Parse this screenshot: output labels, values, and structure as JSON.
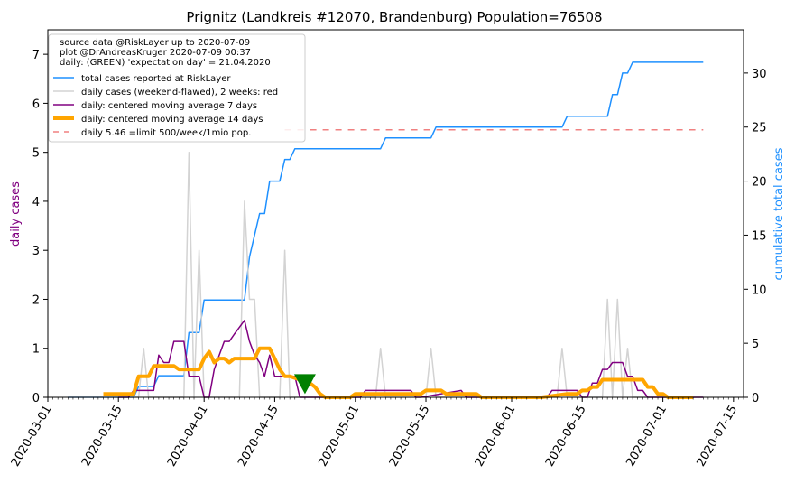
{
  "chart_data": {
    "type": "line",
    "title": "Prignitz (Landkreis #12070, Brandenburg) Population=76508",
    "ylabel_left": "daily cases",
    "ylabel_right": "cumulative total cases",
    "left_color": "#800080",
    "right_color": "#1e90ff",
    "x_start": "2020-03-01",
    "x_end": "2020-07-17",
    "x_ticks": [
      "2020-03-01",
      "2020-03-15",
      "2020-04-01",
      "2020-04-15",
      "2020-05-01",
      "2020-05-15",
      "2020-06-01",
      "2020-06-15",
      "2020-07-01",
      "2020-07-15"
    ],
    "ylim_left": [
      0,
      7.5
    ],
    "ylim_right": [
      0,
      34
    ],
    "yticks_left": [
      "0",
      "1",
      "2",
      "3",
      "4",
      "5",
      "6",
      "7"
    ],
    "yticks_right": [
      "0",
      "5",
      "10",
      "15",
      "20",
      "25",
      "30"
    ],
    "legend": {
      "placement": "upper-left",
      "info_lines": [
        "source data @RiskLayer up to 2020-07-09",
        "plot @DrAndreasKruger 2020-07-09 00:37",
        "daily: (GREEN) 'expectation day' = 21.04.2020"
      ],
      "entries": [
        {
          "label": "total cases reported at RiskLayer",
          "color": "#1e90ff",
          "width": 1.5,
          "dash": ""
        },
        {
          "label": "daily cases (weekend-flawed), 2 weeks: red",
          "color": "#d3d3d3",
          "width": 1.5,
          "dash": ""
        },
        {
          "label": "daily: centered moving average 7 days",
          "color": "#800080",
          "width": 1.5,
          "dash": ""
        },
        {
          "label": "daily: centered moving average 14 days",
          "color": "#ffa500",
          "width": 4,
          "dash": ""
        },
        {
          "label": "daily 5.46 =limit 500/week/1mio pop.",
          "color": "#f08080",
          "width": 1.5,
          "dash": "6,6"
        }
      ]
    },
    "limit_line": {
      "value": 5.46,
      "x_from": "2020-04-17",
      "x_to": "2020-07-09",
      "color": "#f08080"
    },
    "expectation_marker": {
      "date": "2020-04-21",
      "value": 0.25,
      "color": "#008000"
    },
    "series": [
      {
        "name": "total cases reported at RiskLayer",
        "axis": "right",
        "color": "#1e90ff",
        "width": 1.5,
        "x": [
          "2020-03-05",
          "2020-03-18",
          "2020-03-19",
          "2020-03-22",
          "2020-03-23",
          "2020-03-28",
          "2020-03-29",
          "2020-03-31",
          "2020-04-01",
          "2020-04-09",
          "2020-04-10",
          "2020-04-11",
          "2020-04-12",
          "2020-04-13",
          "2020-04-14",
          "2020-04-16",
          "2020-04-17",
          "2020-04-18",
          "2020-04-19",
          "2020-05-06",
          "2020-05-07",
          "2020-05-16",
          "2020-05-17",
          "2020-06-11",
          "2020-06-12",
          "2020-06-20",
          "2020-06-21",
          "2020-06-22",
          "2020-06-23",
          "2020-06-24",
          "2020-06-25",
          "2020-07-09"
        ],
        "values": [
          0,
          0,
          1,
          1,
          2,
          2,
          6,
          6,
          9,
          9,
          13,
          15,
          17,
          17,
          20,
          20,
          22,
          22,
          23,
          23,
          24,
          24,
          25,
          25,
          26,
          26,
          28,
          28,
          30,
          30,
          31,
          31
        ]
      },
      {
        "name": "daily cases (weekend-flawed), 2 weeks: red",
        "axis": "left",
        "color": "#d3d3d3",
        "width": 1.5,
        "x": [
          "2020-03-05",
          "2020-03-19",
          "2020-03-20",
          "2020-03-21",
          "2020-03-28",
          "2020-03-29",
          "2020-03-30",
          "2020-03-31",
          "2020-04-01",
          "2020-04-08",
          "2020-04-09",
          "2020-04-10",
          "2020-04-11",
          "2020-04-12",
          "2020-04-13",
          "2020-04-16",
          "2020-04-17",
          "2020-04-18",
          "2020-05-05",
          "2020-05-06",
          "2020-05-07",
          "2020-05-15",
          "2020-05-16",
          "2020-05-17",
          "2020-06-10",
          "2020-06-11",
          "2020-06-12",
          "2020-06-19",
          "2020-06-20",
          "2020-06-21",
          "2020-06-22",
          "2020-06-23",
          "2020-06-24",
          "2020-06-25",
          "2020-07-09"
        ],
        "values": [
          0,
          0,
          1,
          0,
          0,
          5,
          0,
          3,
          0,
          0,
          4,
          2,
          2,
          0,
          0,
          0,
          3,
          0,
          0,
          1,
          0,
          0,
          1,
          0,
          0,
          1,
          0,
          0,
          2,
          0,
          2,
          0,
          1,
          0,
          0
        ]
      },
      {
        "name": "daily: centered moving average 7 days",
        "axis": "left",
        "color": "#800080",
        "width": 1.5,
        "x": [
          "2020-03-15",
          "2020-03-17",
          "2020-03-18",
          "2020-03-22",
          "2020-03-23",
          "2020-03-24",
          "2020-03-25",
          "2020-03-26",
          "2020-03-27",
          "2020-03-28",
          "2020-03-29",
          "2020-03-30",
          "2020-03-31",
          "2020-04-01",
          "2020-04-02",
          "2020-04-03",
          "2020-04-04",
          "2020-04-05",
          "2020-04-06",
          "2020-04-07",
          "2020-04-08",
          "2020-04-09",
          "2020-04-10",
          "2020-04-11",
          "2020-04-12",
          "2020-04-13",
          "2020-04-14",
          "2020-04-15",
          "2020-04-16",
          "2020-04-17",
          "2020-04-18",
          "2020-04-19",
          "2020-04-20",
          "2020-04-21",
          "2020-04-22",
          "2020-04-23",
          "2020-04-24",
          "2020-04-25",
          "2020-04-30",
          "2020-05-02",
          "2020-05-03",
          "2020-05-12",
          "2020-05-13",
          "2020-05-14",
          "2020-05-22",
          "2020-05-23",
          "2020-05-24",
          "2020-06-08",
          "2020-06-09",
          "2020-06-10",
          "2020-06-14",
          "2020-06-15",
          "2020-06-16",
          "2020-06-17",
          "2020-06-18",
          "2020-06-19",
          "2020-06-20",
          "2020-06-21",
          "2020-06-22",
          "2020-06-23",
          "2020-06-24",
          "2020-06-25",
          "2020-06-26",
          "2020-06-27",
          "2020-06-28",
          "2020-06-29",
          "2020-06-30",
          "2020-07-09"
        ],
        "values": [
          0,
          0,
          0.14,
          0.14,
          0.86,
          0.71,
          0.71,
          1.14,
          1.14,
          1.14,
          0.43,
          0.43,
          0.43,
          0,
          0,
          0.57,
          0.86,
          1.14,
          1.14,
          1.29,
          1.43,
          1.57,
          1.14,
          0.86,
          0.71,
          0.43,
          0.86,
          0.43,
          0.43,
          0.43,
          0.43,
          0.43,
          0,
          0,
          0,
          0,
          0,
          0,
          0,
          0,
          0.14,
          0.14,
          0,
          0,
          0.14,
          0,
          0,
          0,
          0.14,
          0.14,
          0.14,
          0,
          0,
          0.29,
          0.29,
          0.57,
          0.57,
          0.71,
          0.71,
          0.71,
          0.43,
          0.43,
          0.14,
          0.14,
          0,
          0,
          0,
          0
        ]
      },
      {
        "name": "daily: centered moving average 14 days",
        "axis": "left",
        "color": "#ffa500",
        "width": 4,
        "x": [
          "2020-03-12",
          "2020-03-17",
          "2020-03-18",
          "2020-03-19",
          "2020-03-20",
          "2020-03-21",
          "2020-03-22",
          "2020-03-23",
          "2020-03-26",
          "2020-03-27",
          "2020-03-29",
          "2020-03-30",
          "2020-03-31",
          "2020-04-01",
          "2020-04-02",
          "2020-04-03",
          "2020-04-04",
          "2020-04-05",
          "2020-04-06",
          "2020-04-07",
          "2020-04-08",
          "2020-04-10",
          "2020-04-11",
          "2020-04-12",
          "2020-04-13",
          "2020-04-14",
          "2020-04-15",
          "2020-04-16",
          "2020-04-17",
          "2020-04-18",
          "2020-04-20",
          "2020-04-21",
          "2020-04-22",
          "2020-04-23",
          "2020-04-24",
          "2020-04-25",
          "2020-04-26",
          "2020-04-30",
          "2020-05-01",
          "2020-05-10",
          "2020-05-11",
          "2020-05-12",
          "2020-05-14",
          "2020-05-15",
          "2020-05-16",
          "2020-05-18",
          "2020-05-19",
          "2020-05-24",
          "2020-05-25",
          "2020-05-26",
          "2020-06-06",
          "2020-06-07",
          "2020-06-12",
          "2020-06-13",
          "2020-06-14",
          "2020-06-15",
          "2020-06-16",
          "2020-06-17",
          "2020-06-18",
          "2020-06-19",
          "2020-06-20",
          "2020-06-27",
          "2020-06-28",
          "2020-06-29",
          "2020-06-30",
          "2020-07-01",
          "2020-07-02",
          "2020-07-07"
        ],
        "values": [
          0.07,
          0.07,
          0.07,
          0.43,
          0.43,
          0.43,
          0.64,
          0.64,
          0.64,
          0.57,
          0.57,
          0.57,
          0.57,
          0.79,
          0.93,
          0.71,
          0.79,
          0.79,
          0.71,
          0.79,
          0.79,
          0.79,
          0.79,
          1.0,
          1.0,
          1.0,
          0.79,
          0.57,
          0.43,
          0.43,
          0.36,
          0.21,
          0.29,
          0.21,
          0.07,
          0,
          0,
          0,
          0.07,
          0.07,
          0.07,
          0.07,
          0.07,
          0.14,
          0.14,
          0.14,
          0.07,
          0.07,
          0.07,
          0,
          0,
          0,
          0.07,
          0.07,
          0.07,
          0.14,
          0.14,
          0.21,
          0.21,
          0.36,
          0.36,
          0.36,
          0.21,
          0.21,
          0.07,
          0.07,
          0,
          0
        ]
      }
    ]
  }
}
